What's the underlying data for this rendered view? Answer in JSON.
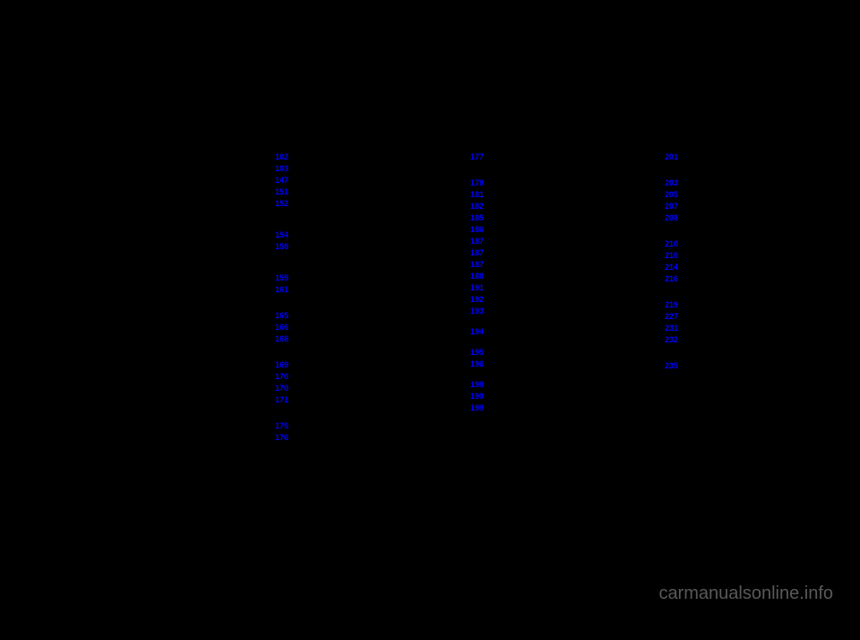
{
  "styling": {
    "background_color": "#000000",
    "link_color": "#0000ff",
    "footer_color": "#595959",
    "link_fontsize": 9,
    "footer_fontsize": 20
  },
  "col1": {
    "g1": [
      "102",
      "103",
      "147",
      "151",
      "152"
    ],
    "g2": [
      "154",
      "158"
    ],
    "g3": [
      "159",
      "161"
    ],
    "g4": [
      "165",
      "166",
      "168"
    ],
    "g5": [
      "169",
      "170",
      "170",
      "171"
    ],
    "g6": [
      "175",
      "176"
    ]
  },
  "col2": {
    "g1": [
      "177"
    ],
    "g2": [
      "178",
      "181",
      "182",
      "185",
      "186",
      "187",
      "187",
      "187",
      "188",
      "191",
      "192",
      "193"
    ],
    "g3": [
      "194"
    ],
    "g4": [
      "195",
      "196"
    ],
    "g5": [
      "198",
      "199",
      "199"
    ]
  },
  "col3": {
    "g1": [
      "201"
    ],
    "g2": [
      "203",
      "205",
      "207",
      "208"
    ],
    "g3": [
      "210",
      "210",
      "214",
      "216"
    ],
    "g4": [
      "219",
      "227",
      "231",
      "232"
    ],
    "g5": [
      "235"
    ]
  },
  "footer": {
    "text": "carmanualsonline.info"
  }
}
